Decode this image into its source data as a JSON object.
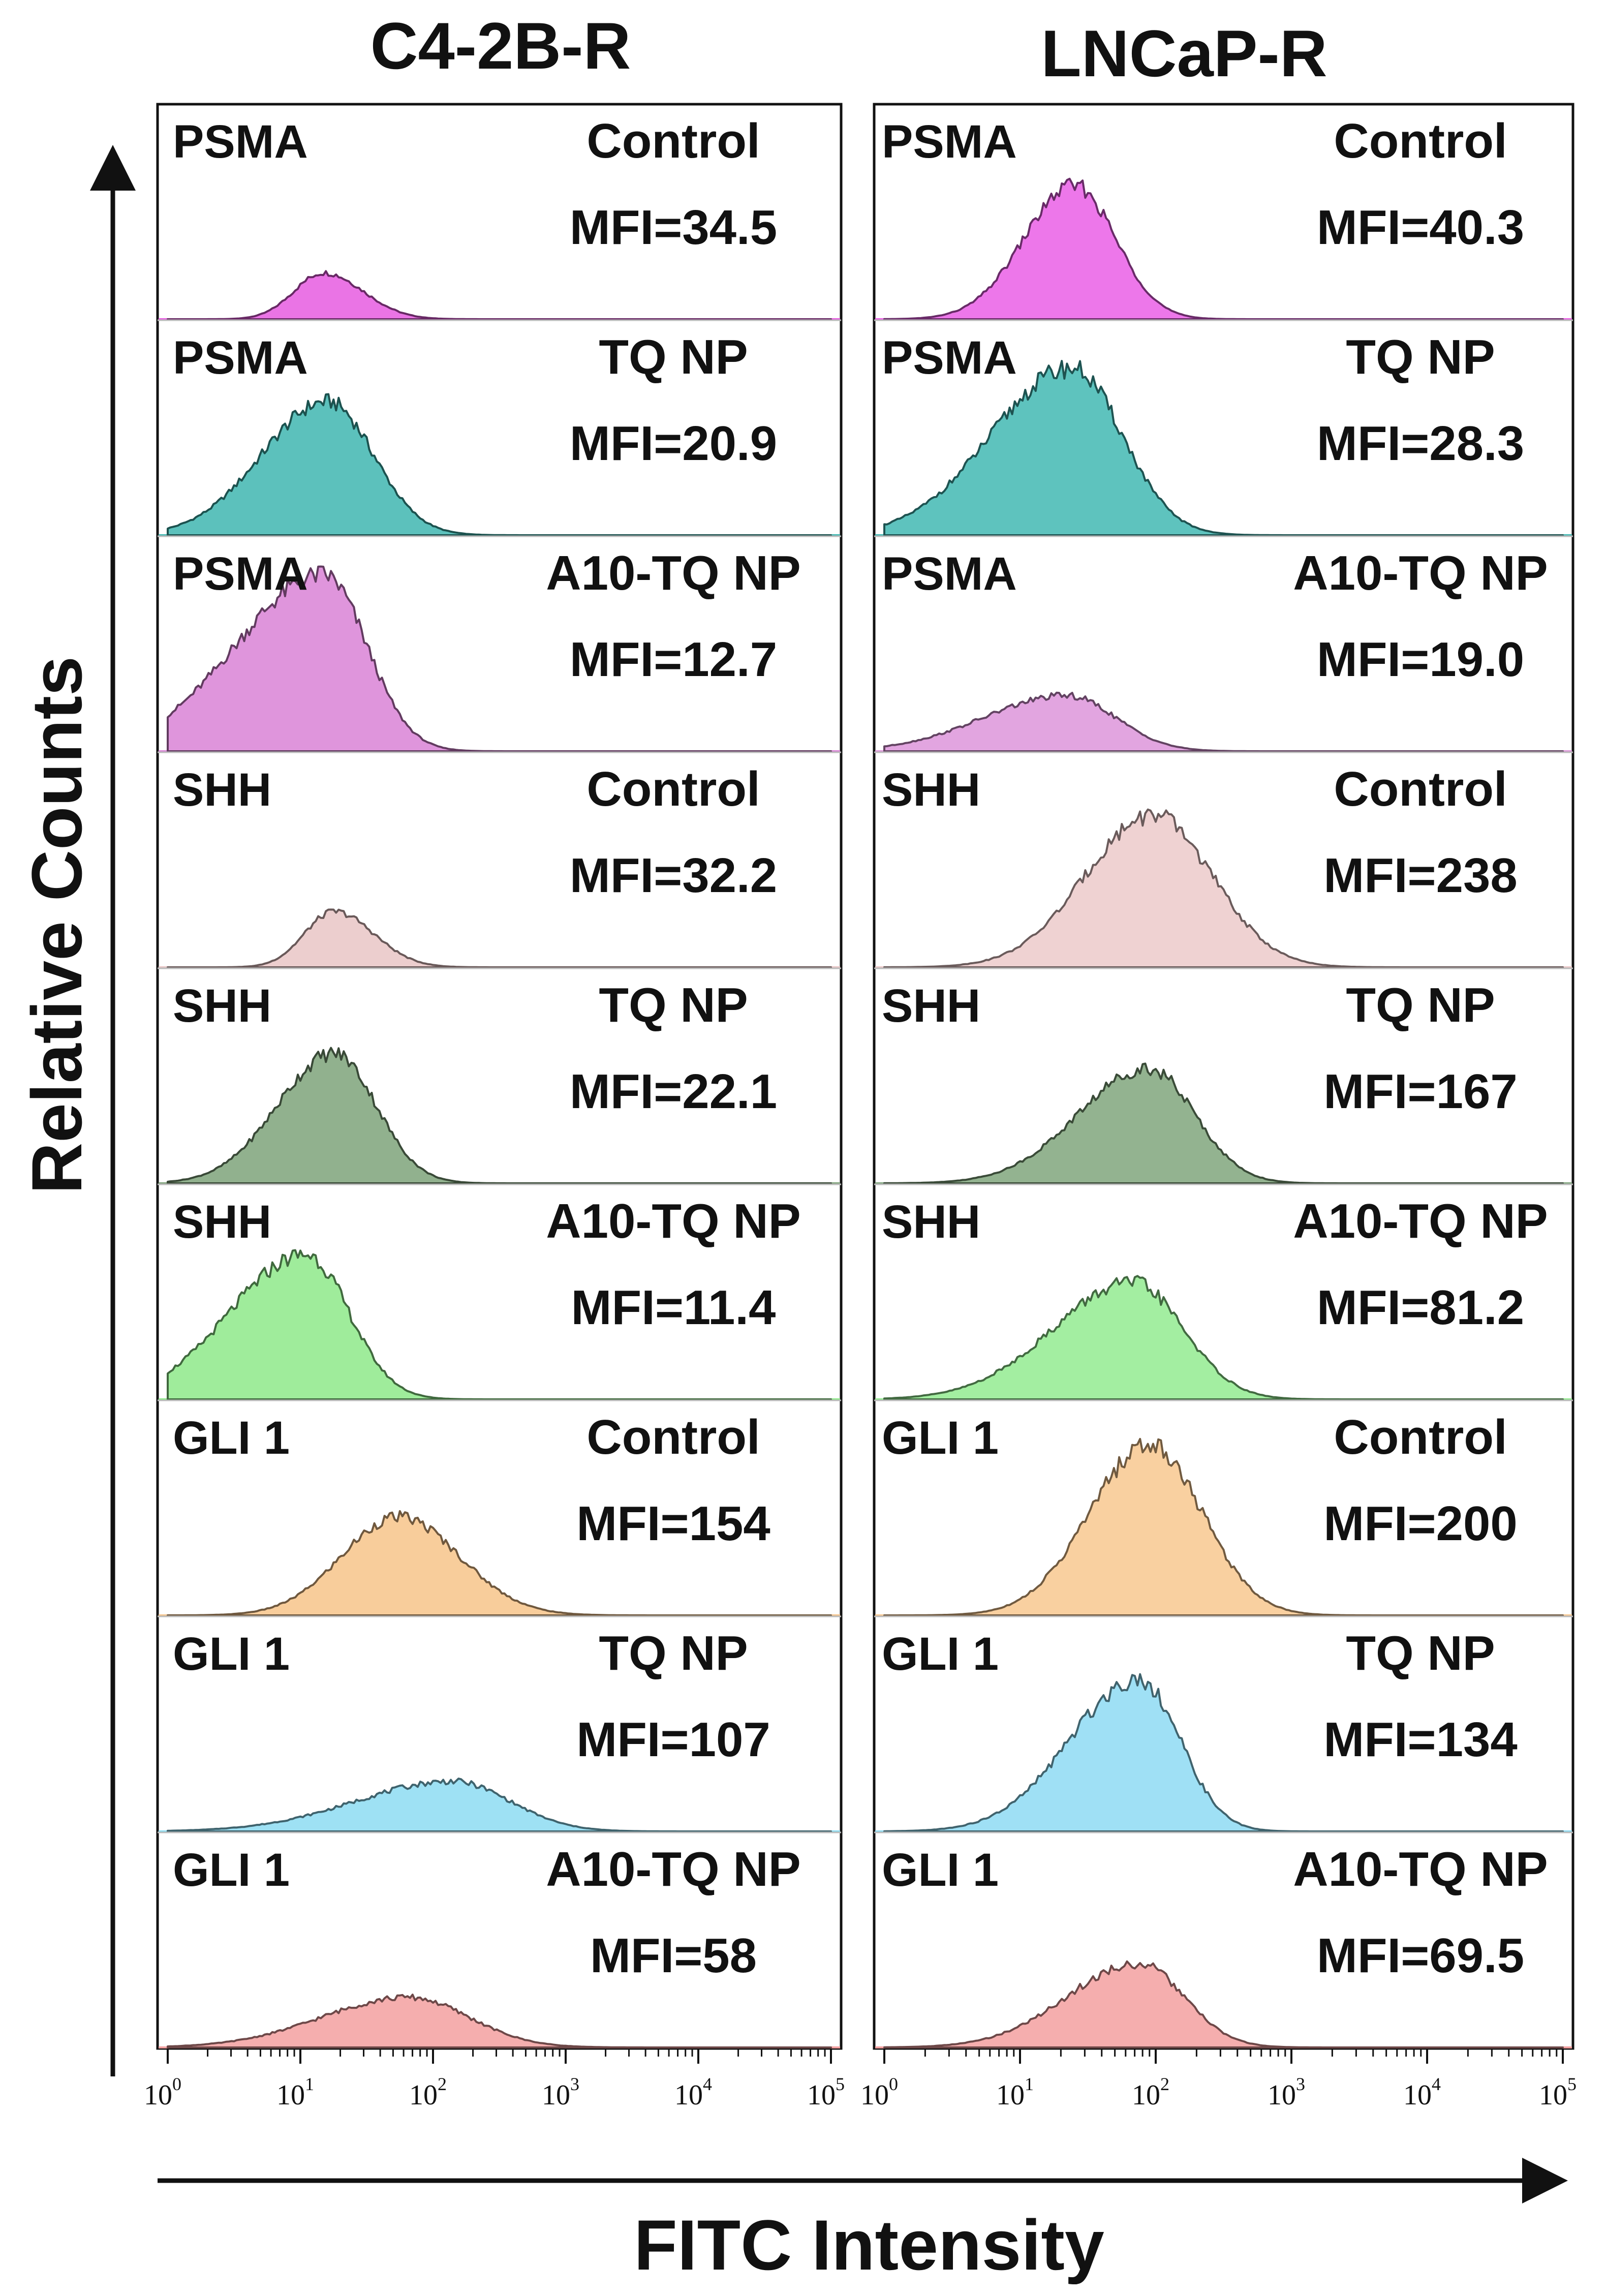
{
  "chart_data": {
    "type": "histogram",
    "title": "",
    "xlabel": "FITC Intensity",
    "ylabel": "Relative Counts",
    "x_scale": "log",
    "xlim": [
      1,
      100000
    ],
    "x_ticks": [
      {
        "base": "10",
        "exp": "0"
      },
      {
        "base": "10",
        "exp": "1"
      },
      {
        "base": "10",
        "exp": "2"
      },
      {
        "base": "10",
        "exp": "3"
      },
      {
        "base": "10",
        "exp": "4"
      },
      {
        "base": "10",
        "exp": "5"
      }
    ],
    "panels": [
      {
        "cell_line": "C4-2B-R",
        "rows": [
          {
            "marker": "PSMA",
            "treatment": "Control",
            "mfi_label": "MFI=34.5",
            "mfi": 34.5,
            "peak_x": 15,
            "peak_height": 0.25,
            "width": 0.28,
            "skew": 0.2,
            "color": "#e65ce0"
          },
          {
            "marker": "PSMA",
            "treatment": "TQ NP",
            "mfi_label": "MFI=20.9",
            "mfi": 20.9,
            "peak_x": 16,
            "peak_height": 0.72,
            "width": 0.38,
            "skew": -0.3,
            "color": "#3fb6b0"
          },
          {
            "marker": "PSMA",
            "treatment": "A10-TQ NP",
            "mfi_label": "MFI=12.7",
            "mfi": 12.7,
            "peak_x": 15,
            "peak_height": 0.95,
            "width": 0.4,
            "skew": -0.65,
            "color": "#d982d6"
          },
          {
            "marker": "SHH",
            "treatment": "Control",
            "mfi_label": "MFI=32.2",
            "mfi": 32.2,
            "peak_x": 18,
            "peak_height": 0.3,
            "width": 0.28,
            "skew": 0.2,
            "color": "#e9c6c6"
          },
          {
            "marker": "SHH",
            "treatment": "TQ NP",
            "mfi_label": "MFI=22.1",
            "mfi": 22.1,
            "peak_x": 18,
            "peak_height": 0.7,
            "width": 0.34,
            "skew": -0.25,
            "color": "#7ea37a"
          },
          {
            "marker": "SHH",
            "treatment": "A10-TQ NP",
            "mfi_label": "MFI=11.4",
            "mfi": 11.4,
            "peak_x": 11,
            "peak_height": 0.78,
            "width": 0.38,
            "skew": -0.5,
            "color": "#8ee98a"
          },
          {
            "marker": "GLI 1",
            "treatment": "Control",
            "mfi_label": "MFI=154",
            "mfi": 154,
            "peak_x": 55,
            "peak_height": 0.53,
            "width": 0.45,
            "skew": 0.05,
            "color": "#f7c48a"
          },
          {
            "marker": "GLI 1",
            "treatment": "TQ NP",
            "mfi_label": "MFI=107",
            "mfi": 107,
            "peak_x": 140,
            "peak_height": 0.27,
            "width": 0.5,
            "skew": -0.45,
            "color": "#8ddcf2"
          },
          {
            "marker": "GLI 1",
            "treatment": "A10-TQ NP",
            "mfi_label": "MFI=58",
            "mfi": 58,
            "peak_x": 65,
            "peak_height": 0.27,
            "width": 0.5,
            "skew": -0.3,
            "color": "#f3a0a0"
          }
        ]
      },
      {
        "cell_line": "LNCaP-R",
        "rows": [
          {
            "marker": "PSMA",
            "treatment": "Control",
            "mfi_label": "MFI=40.3",
            "mfi": 40.3,
            "peak_x": 25,
            "peak_height": 0.72,
            "width": 0.32,
            "skew": -0.15,
            "color": "#ea5fe6"
          },
          {
            "marker": "PSMA",
            "treatment": "TQ NP",
            "mfi_label": "MFI=28.3",
            "mfi": 28.3,
            "peak_x": 24,
            "peak_height": 0.9,
            "width": 0.42,
            "skew": -0.4,
            "color": "#42b8b3"
          },
          {
            "marker": "PSMA",
            "treatment": "A10-TQ NP",
            "mfi_label": "MFI=19.0",
            "mfi": 19,
            "peak_x": 22,
            "peak_height": 0.3,
            "width": 0.42,
            "skew": -0.45,
            "color": "#dd95da"
          },
          {
            "marker": "SHH",
            "treatment": "Control",
            "mfi_label": "MFI=238",
            "mfi": 238,
            "peak_x": 95,
            "peak_height": 0.82,
            "width": 0.45,
            "skew": -0.1,
            "color": "#eccaca"
          },
          {
            "marker": "SHH",
            "treatment": "TQ NP",
            "mfi_label": "MFI=167",
            "mfi": 167,
            "peak_x": 88,
            "peak_height": 0.62,
            "width": 0.38,
            "skew": -0.35,
            "color": "#80a67d"
          },
          {
            "marker": "SHH",
            "treatment": "A10-TQ NP",
            "mfi_label": "MFI=81.2",
            "mfi": 81.2,
            "peak_x": 68,
            "peak_height": 0.63,
            "width": 0.42,
            "skew": -0.4,
            "color": "#93eb90"
          },
          {
            "marker": "GLI 1",
            "treatment": "Control",
            "mfi_label": "MFI=200",
            "mfi": 200,
            "peak_x": 90,
            "peak_height": 0.92,
            "width": 0.4,
            "skew": -0.1,
            "color": "#f8c88f"
          },
          {
            "marker": "GLI 1",
            "treatment": "TQ NP",
            "mfi_label": "MFI=134",
            "mfi": 134,
            "peak_x": 75,
            "peak_height": 0.82,
            "width": 0.35,
            "skew": -0.45,
            "color": "#8edbf3"
          },
          {
            "marker": "GLI 1",
            "treatment": "A10-TQ NP",
            "mfi_label": "MFI=69.5",
            "mfi": 69.5,
            "peak_x": 75,
            "peak_height": 0.45,
            "width": 0.38,
            "skew": -0.4,
            "color": "#f3a0a0"
          }
        ]
      }
    ]
  }
}
